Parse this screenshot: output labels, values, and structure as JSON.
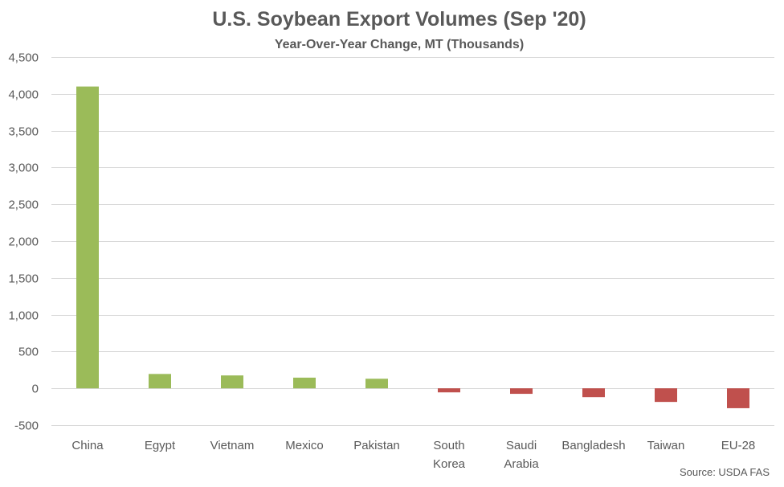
{
  "chart_data": {
    "type": "bar",
    "title": "U.S. Soybean Export Volumes (Sep '20)",
    "subtitle": "Year-Over-Year Change, MT (Thousands)",
    "source": "Source: USDA FAS",
    "categories": [
      "China",
      "Egypt",
      "Vietnam",
      "Mexico",
      "Pakistan",
      "South Korea",
      "Saudi Arabia",
      "Bangladesh",
      "Taiwan",
      "EU-28"
    ],
    "category_lines": [
      [
        "China"
      ],
      [
        "Egypt"
      ],
      [
        "Vietnam"
      ],
      [
        "Mexico"
      ],
      [
        "Pakistan"
      ],
      [
        "South",
        "Korea"
      ],
      [
        "Saudi",
        "Arabia"
      ],
      [
        "Bangladesh"
      ],
      [
        "Taiwan"
      ],
      [
        "EU-28"
      ]
    ],
    "values": [
      4100,
      195,
      175,
      145,
      130,
      -55,
      -75,
      -120,
      -185,
      -270
    ],
    "ylim": [
      -500,
      4500
    ],
    "yticks": [
      -500,
      0,
      500,
      1000,
      1500,
      2000,
      2500,
      3000,
      3500,
      4000,
      4500
    ],
    "ytick_labels": [
      "-500",
      "0",
      "500",
      "1,000",
      "1,500",
      "2,000",
      "2,500",
      "3,000",
      "3,500",
      "4,000",
      "4,500"
    ],
    "grid": true,
    "legend": "none",
    "colors": {
      "positive": "#9bbb59",
      "negative": "#c0504d",
      "grid": "#d9d9d9",
      "text": "#595959"
    }
  }
}
